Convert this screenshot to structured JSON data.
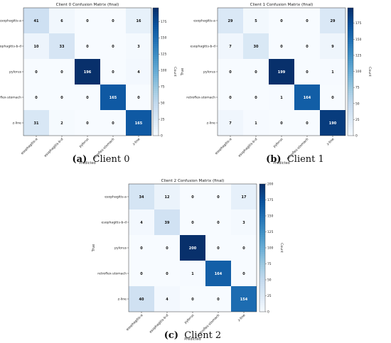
{
  "chart_data": [
    {
      "type": "heatmap",
      "title": "Client 0 Confusion Matrix (final)",
      "xlabel": "Predicted",
      "ylabel": "True",
      "categories": [
        "esophagitis-a",
        "esophagitis-b-d",
        "pylorus",
        "retroflex-stomach",
        "z-line"
      ],
      "values": [
        [
          41,
          6,
          0,
          0,
          16
        ],
        [
          10,
          33,
          0,
          0,
          3
        ],
        [
          0,
          0,
          196,
          0,
          4
        ],
        [
          0,
          0,
          0,
          165,
          0
        ],
        [
          31,
          2,
          0,
          0,
          165
        ]
      ],
      "colorbar": {
        "label": "Count",
        "ticks": [
          "0",
          "25",
          "50",
          "75",
          "100",
          "125",
          "150",
          "175"
        ],
        "max": 196
      },
      "caption_letter": "(a)",
      "caption_text": "Client 0"
    },
    {
      "type": "heatmap",
      "title": "Client 1 Confusion Matrix (final)",
      "xlabel": "Predicted",
      "ylabel": "True",
      "categories": [
        "esophagitis-a",
        "esophagitis-b-d",
        "pylorus",
        "retroflex-stomach",
        "z-line"
      ],
      "values": [
        [
          29,
          5,
          0,
          0,
          29
        ],
        [
          7,
          30,
          0,
          0,
          9
        ],
        [
          0,
          0,
          199,
          0,
          1
        ],
        [
          0,
          0,
          1,
          164,
          0
        ],
        [
          7,
          1,
          0,
          0,
          190
        ]
      ],
      "colorbar": {
        "label": "Count",
        "ticks": [
          "0",
          "25",
          "50",
          "75",
          "100",
          "125",
          "150",
          "175"
        ],
        "max": 199
      },
      "caption_letter": "(b)",
      "caption_text": "Client 1"
    },
    {
      "type": "heatmap",
      "title": "Client 2 Confusion Matrix (final)",
      "xlabel": "Predicted",
      "ylabel": "True",
      "categories": [
        "esophagitis-a",
        "esophagitis-b-d",
        "pylorus",
        "retroflex-stomach",
        "z-line"
      ],
      "values": [
        [
          34,
          12,
          0,
          0,
          17
        ],
        [
          4,
          39,
          0,
          0,
          3
        ],
        [
          0,
          0,
          200,
          0,
          0
        ],
        [
          0,
          0,
          1,
          164,
          0
        ],
        [
          40,
          4,
          0,
          0,
          154
        ]
      ],
      "colorbar": {
        "label": "Count",
        "ticks": [
          "0",
          "25",
          "50",
          "75",
          "100",
          "125",
          "150",
          "175",
          "200"
        ],
        "max": 200
      },
      "caption_letter": "(c)",
      "caption_text": "Client 2"
    }
  ]
}
